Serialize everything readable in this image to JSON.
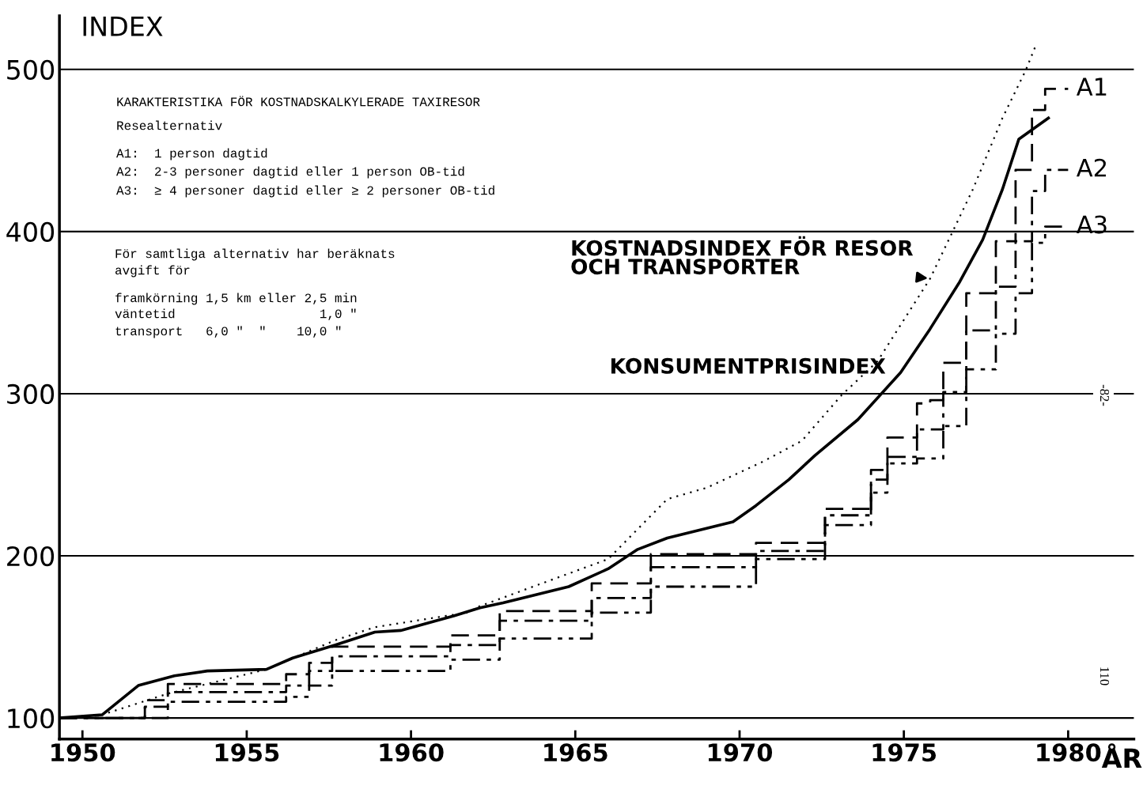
{
  "chart_data": {
    "type": "line",
    "ylabel": "INDEX",
    "xlabel": "ÅR",
    "xlim": [
      1949.3,
      1982
    ],
    "xticks": [
      1950,
      1955,
      1960,
      1965,
      1970,
      1975,
      1980
    ],
    "ylim": [
      87,
      533
    ],
    "yticks": [
      100,
      200,
      300,
      400,
      500
    ],
    "grid": "y",
    "legend": false,
    "series": [
      {
        "name": "A1",
        "type": "step",
        "color": "#000000",
        "line_style": "dashed",
        "x": [
          1949.3,
          1951.9,
          1952.6,
          1956.2,
          1956.9,
          1957.6,
          1961.2,
          1962.7,
          1965.5,
          1967.3,
          1970.5,
          1972.6,
          1974.0,
          1974.5,
          1975.4,
          1975.8,
          1976.2,
          1976.9,
          1977.8,
          1978.4,
          1978.9,
          1979.3,
          1980.0
        ],
        "values": [
          100,
          111,
          121,
          127,
          134,
          144,
          151,
          166,
          183,
          201,
          208,
          229,
          253,
          273,
          294,
          296,
          319,
          362,
          394,
          438,
          475,
          488,
          488
        ]
      },
      {
        "name": "A2",
        "type": "step",
        "color": "#000000",
        "line_style": "dashdot",
        "x": [
          1949.3,
          1951.9,
          1952.6,
          1956.2,
          1956.9,
          1957.6,
          1961.2,
          1962.7,
          1965.5,
          1967.3,
          1970.5,
          1972.6,
          1974.0,
          1974.5,
          1975.4,
          1975.8,
          1976.2,
          1976.9,
          1977.8,
          1978.4,
          1978.9,
          1979.3,
          1980.0
        ],
        "values": [
          100,
          107,
          116,
          120,
          129,
          138,
          145,
          160,
          174,
          193,
          203,
          225,
          247,
          261,
          278,
          278,
          301,
          339,
          366,
          394,
          425,
          438,
          438
        ]
      },
      {
        "name": "A3",
        "type": "step",
        "color": "#000000",
        "line_style": "dashdotdot",
        "x": [
          1949.3,
          1951.9,
          1952.6,
          1956.2,
          1956.9,
          1957.6,
          1961.2,
          1962.7,
          1965.5,
          1967.3,
          1970.5,
          1972.6,
          1974.0,
          1974.5,
          1975.4,
          1975.8,
          1976.2,
          1976.9,
          1977.8,
          1978.4,
          1978.9,
          1979.3,
          1980.0
        ],
        "values": [
          100,
          100,
          110,
          113,
          120,
          129,
          136,
          149,
          165,
          181,
          198,
          219,
          239,
          257,
          260,
          260,
          280,
          315,
          337,
          362,
          393,
          403,
          403
        ]
      },
      {
        "name": "KOSTNADSINDEX FÖR RESOR\nOCH TRANSPORTER",
        "color": "#000000",
        "line_style": "dotted",
        "x": [
          1949.3,
          1950.6,
          1952.6,
          1955.6,
          1957.7,
          1958.9,
          1961.7,
          1962.1,
          1966.0,
          1967.8,
          1969.0,
          1970.7,
          1971.9,
          1973.1,
          1974.2,
          1975.8,
          1977.1,
          1978.0,
          1978.7,
          1979.0
        ],
        "values": [
          100,
          102,
          115,
          130,
          148,
          156,
          165,
          169,
          198,
          235,
          242,
          258,
          271,
          299,
          320,
          371,
          426,
          470,
          499,
          514
        ]
      },
      {
        "name": "KONSUMENTPRISINDEX",
        "color": "#000000",
        "line_style": "solid",
        "x": [
          1949.3,
          1950.6,
          1951.7,
          1952.8,
          1953.8,
          1955.6,
          1956.4,
          1957.7,
          1958.9,
          1959.7,
          1961.3,
          1962.1,
          1962.8,
          1964.8,
          1966.0,
          1966.9,
          1967.8,
          1969.8,
          1970.5,
          1971.5,
          1972.3,
          1973.6,
          1974.9,
          1975.8,
          1976.7,
          1977.4,
          1978.0,
          1978.5,
          1979.4
        ],
        "values": [
          100,
          102,
          120,
          126,
          129,
          130,
          137,
          145,
          153,
          154,
          163,
          168,
          171,
          181,
          192,
          204,
          211,
          221,
          231,
          247,
          262,
          284,
          313,
          340,
          369,
          395,
          426,
          457,
          470
        ]
      }
    ],
    "annotations": [
      "KARAKTERISTIKA FÖR KOSTNADSKALKYLERADE TAXIRESOR",
      "Resealternativ",
      "A1:  1 person dagtid",
      "A2:  2-3 personer dagtid eller 1 person OB-tid",
      "A3:  ≥ 4 personer dagtid eller ≥ 2 personer OB-tid",
      "För samtliga alternativ har beräknats",
      "avgift för",
      "framkörning 1,5 km eller 2,5 min",
      "väntetid                   1,0 \"",
      "transport   6,0 \"  \"    10,0 \"",
      "-82-",
      "110"
    ]
  }
}
